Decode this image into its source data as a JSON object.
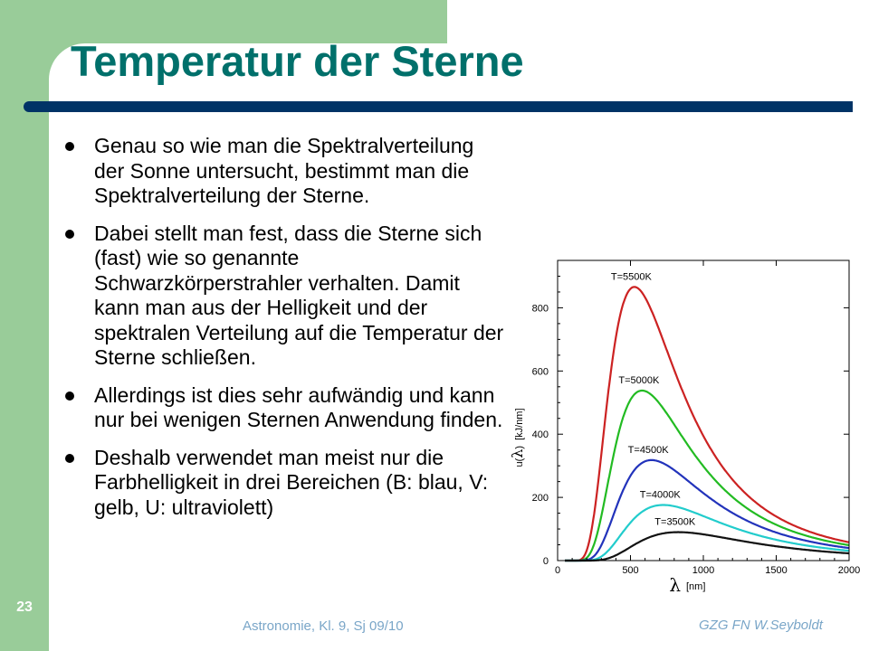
{
  "slide": {
    "title": "Temperatur der Sterne",
    "page_number": "23",
    "footer_center": "Astronomie, Kl. 9, Sj 09/10",
    "footer_right": "GZG FN W.Seyboldt"
  },
  "bullets": [
    "Genau so wie man die Spektralverteilung der Sonne untersucht, bestimmt man die Spektralverteilung der Sterne.",
    "Dabei stellt man fest, dass die Sterne sich (fast) wie so genannte Schwarzkörperstrahler verhalten. Damit kann man aus der Helligkeit und der spektralen Verteilung auf die Temperatur der Sterne schließen.",
    "Allerdings ist dies sehr aufwändig und kann nur bei wenigen Sternen Anwendung finden.",
    "Deshalb verwendet man meist nur die Farbhelligkeit in drei Bereichen (B: blau, V: gelb, U: ultraviolett)"
  ],
  "colors": {
    "title": "#00706b",
    "title_bar": "#003366",
    "sidebar": "#99cc99",
    "footer": "#7aa6c8"
  },
  "chart_data": {
    "type": "line",
    "title": "",
    "xlabel_symbol": "λ",
    "xlabel_unit": "[nm]",
    "ylabel_prefix": "u(",
    "ylabel_symbol": "λ",
    "ylabel_suffix": ")",
    "ylabel_unit": "[kJ/nm]",
    "xlim": [
      0,
      2000
    ],
    "ylim": [
      0,
      950
    ],
    "xticks": [
      0,
      500,
      1000,
      1500,
      2000
    ],
    "yticks": [
      0,
      200,
      400,
      600,
      800
    ],
    "grid": false,
    "series": [
      {
        "name": "T=5500K",
        "color": "#cc2222",
        "T": 5500,
        "peak_x": 527,
        "peak_y": 866,
        "x": [
          200,
          300,
          400,
          500,
          527,
          600,
          800,
          1000,
          1200,
          1500,
          2000
        ],
        "y": [
          5,
          212,
          700,
          860,
          866,
          830,
          560,
          340,
          210,
          110,
          45
        ]
      },
      {
        "name": "T=5000K",
        "color": "#22bb22",
        "T": 5000,
        "peak_x": 580,
        "peak_y": 538,
        "x": [
          200,
          300,
          400,
          500,
          580,
          700,
          800,
          1000,
          1200,
          1500,
          2000
        ],
        "y": [
          1,
          70,
          330,
          505,
          538,
          490,
          420,
          280,
          180,
          100,
          40
        ]
      },
      {
        "name": "T=4500K",
        "color": "#2233bb",
        "T": 4500,
        "peak_x": 644,
        "peak_y": 318,
        "x": [
          200,
          300,
          400,
          500,
          644,
          800,
          1000,
          1200,
          1500,
          2000
        ],
        "y": [
          0,
          18,
          120,
          245,
          318,
          280,
          200,
          135,
          80,
          34
        ]
      },
      {
        "name": "T=4000K",
        "color": "#22cccc",
        "T": 4000,
        "peak_x": 725,
        "peak_y": 176,
        "x": [
          300,
          400,
          500,
          600,
          725,
          900,
          1000,
          1200,
          1500,
          2000
        ],
        "y": [
          3,
          30,
          100,
          155,
          176,
          160,
          135,
          95,
          60,
          27
        ]
      },
      {
        "name": "T=3500K",
        "color": "#111111",
        "T": 3500,
        "peak_x": 828,
        "peak_y": 90,
        "x": [
          300,
          400,
          500,
          600,
          700,
          828,
          1000,
          1200,
          1500,
          2000
        ],
        "y": [
          0,
          5,
          25,
          55,
          80,
          90,
          78,
          60,
          40,
          20
        ]
      }
    ]
  }
}
